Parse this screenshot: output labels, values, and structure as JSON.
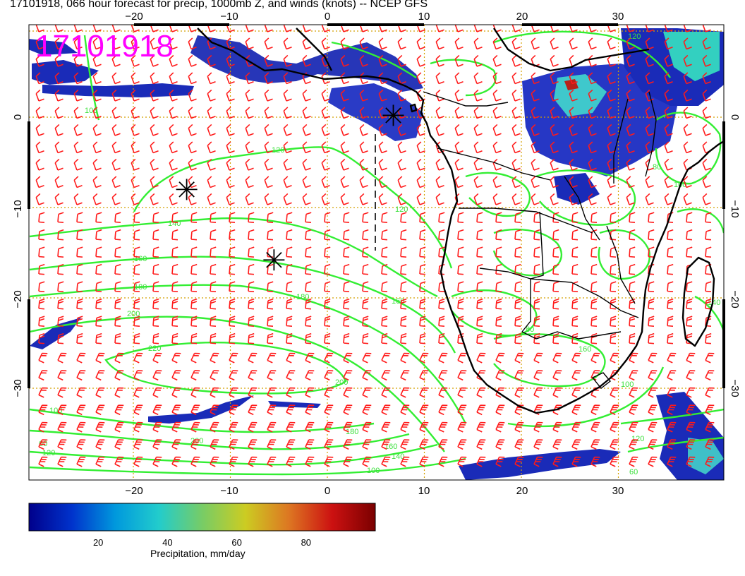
{
  "title": "17101918, 066 hour forecast for precip, 1000mb Z, and winds (knots) -- NCEP GFS",
  "stamp": "17101918",
  "map": {
    "lon_range": [
      -30,
      40
    ],
    "lat_range": [
      -40,
      10
    ],
    "lon_ticks": [
      "−20",
      "−10",
      "0",
      "10",
      "20",
      "30"
    ],
    "lat_ticks": [
      "0",
      "−10",
      "−20",
      "−30"
    ],
    "grid": "dotted orange, every 10 degrees",
    "colors": {
      "contour": "#33ee33",
      "wind_barb": "#ff1a1a",
      "coastline": "#000000",
      "stamp": "#ff00ff"
    },
    "contour_labels": [
      "100",
      "120",
      "140",
      "160",
      "180",
      "200",
      "220",
      "200",
      "180",
      "160",
      "140",
      "120",
      "100",
      "160",
      "180",
      "200",
      "100",
      "120",
      "160",
      "60",
      "80",
      "100",
      "140",
      "120",
      "100",
      "80",
      "60",
      "120"
    ],
    "low_markers": [
      {
        "lon": -14.5,
        "lat": -8,
        "type": "asterisk"
      },
      {
        "lon": -5.5,
        "lat": -15.8,
        "type": "asterisk"
      },
      {
        "lon": 6.8,
        "lat": 0.2,
        "type": "asterisk"
      }
    ]
  },
  "colorbar": {
    "label": "Precipitation, mm/day",
    "ticks": [
      "20",
      "40",
      "60",
      "80"
    ],
    "tick_values": [
      20,
      40,
      60,
      80
    ],
    "range": [
      0,
      100
    ],
    "colors": [
      "#00008b",
      "#0033cc",
      "#0099dd",
      "#22cccc",
      "#77cc66",
      "#cccc22",
      "#dd7722",
      "#cc1111",
      "#7a0000"
    ]
  }
}
